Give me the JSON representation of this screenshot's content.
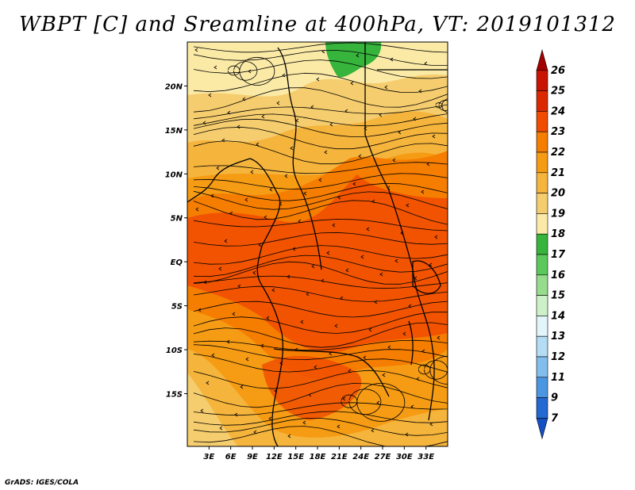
{
  "title": "WBPT [C] and Sreamline at 400hPa, VT: 2019101312",
  "credit": "GrADS: IGES/COLA",
  "map": {
    "lat_range": [
      -21,
      25
    ],
    "lon_range": [
      0,
      36
    ],
    "lat_ticks": [
      {
        "value": 20,
        "label": "20N"
      },
      {
        "value": 15,
        "label": "15N"
      },
      {
        "value": 10,
        "label": "10N"
      },
      {
        "value": 5,
        "label": "5N"
      },
      {
        "value": 0,
        "label": "EQ"
      },
      {
        "value": -5,
        "label": "5S"
      },
      {
        "value": -10,
        "label": "10S"
      },
      {
        "value": -15,
        "label": "15S"
      }
    ],
    "lon_ticks": [
      {
        "value": 3,
        "label": "3E"
      },
      {
        "value": 6,
        "label": "6E"
      },
      {
        "value": 9,
        "label": "9E"
      },
      {
        "value": 12,
        "label": "12E"
      },
      {
        "value": 15,
        "label": "15E"
      },
      {
        "value": 18,
        "label": "18E"
      },
      {
        "value": 21,
        "label": "21E"
      },
      {
        "value": 24,
        "label": "24E"
      },
      {
        "value": 27,
        "label": "27E"
      },
      {
        "value": 30,
        "label": "30E"
      },
      {
        "value": 33,
        "label": "33E"
      }
    ]
  },
  "colorbar": {
    "levels": [
      "26",
      "25",
      "24",
      "23",
      "22",
      "21",
      "20",
      "19",
      "18",
      "17",
      "16",
      "15",
      "14",
      "13",
      "12",
      "11",
      "9",
      "7"
    ],
    "colors": [
      "#a50000",
      "#c81400",
      "#dc2800",
      "#f04b00",
      "#f57d00",
      "#f59b14",
      "#f5b43c",
      "#f5cd6e",
      "#fbeaa6",
      "#37b43c",
      "#5ac85a",
      "#96dc8c",
      "#cdf0c8",
      "#e1f5fa",
      "#b4dcf5",
      "#82beeb",
      "#4b96e1",
      "#2369d2",
      "#1450c3"
    ]
  }
}
